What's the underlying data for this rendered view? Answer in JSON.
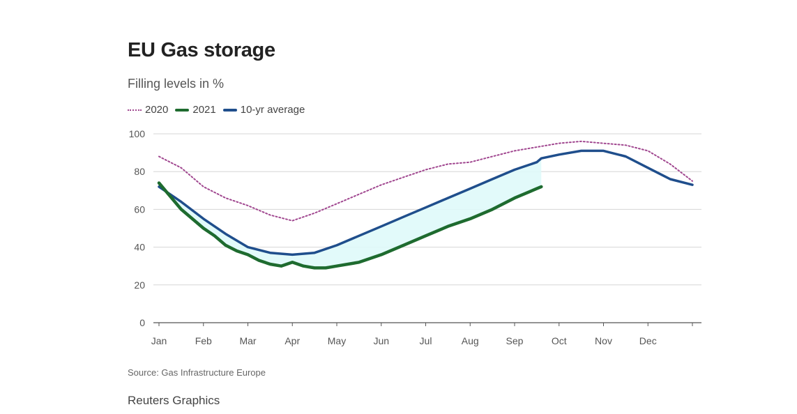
{
  "header": {
    "title": "EU Gas storage",
    "subtitle": "Filling levels in %"
  },
  "legend": [
    {
      "label": "2020",
      "color": "#a0468f",
      "style": "dotted"
    },
    {
      "label": "2021",
      "color": "#1e6b2f",
      "style": "solid"
    },
    {
      "label": "10-yr average",
      "color": "#1f4e8c",
      "style": "solid"
    }
  ],
  "footer": {
    "source": "Source: Gas Infrastructure Europe",
    "credit": "Reuters Graphics"
  },
  "chart_data": {
    "type": "line",
    "title": "EU Gas storage",
    "subtitle": "Filling levels in %",
    "xlabel": "",
    "ylabel": "",
    "xlim": [
      0,
      12
    ],
    "ylim": [
      0,
      100
    ],
    "y_ticks": [
      0,
      20,
      40,
      60,
      80,
      100
    ],
    "x_tick_labels": [
      "Jan",
      "Feb",
      "Mar",
      "Apr",
      "May",
      "Jun",
      "Jul",
      "Aug",
      "Sep",
      "Oct",
      "Nov",
      "Dec"
    ],
    "x_unit": "months since Jan 1",
    "grid": true,
    "shaded_band": {
      "between": [
        "10-yr average",
        "2021"
      ],
      "color": "#dffafa"
    },
    "series": [
      {
        "name": "2020",
        "color": "#a0468f",
        "style": "dotted",
        "x": [
          0,
          0.5,
          1,
          1.5,
          2,
          2.5,
          3,
          3.5,
          4,
          4.5,
          5,
          5.5,
          6,
          6.5,
          7,
          7.5,
          8,
          8.5,
          9,
          9.5,
          10,
          10.5,
          11,
          11.5,
          12
        ],
        "values": [
          88,
          82,
          72,
          66,
          62,
          57,
          54,
          58,
          63,
          68,
          73,
          77,
          81,
          84,
          85,
          88,
          91,
          93,
          95,
          96,
          95,
          94,
          91,
          84,
          75
        ]
      },
      {
        "name": "2021",
        "color": "#1e6b2f",
        "style": "solid",
        "x": [
          0,
          0.25,
          0.5,
          0.75,
          1,
          1.25,
          1.5,
          1.75,
          2,
          2.25,
          2.5,
          2.75,
          3,
          3.25,
          3.5,
          3.75,
          4,
          4.5,
          5,
          5.5,
          6,
          6.5,
          7,
          7.5,
          8,
          8.5,
          8.6
        ],
        "values": [
          74,
          67,
          60,
          55,
          50,
          46,
          41,
          38,
          36,
          33,
          31,
          30,
          32,
          30,
          29,
          29,
          30,
          32,
          36,
          41,
          46,
          51,
          55,
          60,
          66,
          71,
          72
        ]
      },
      {
        "name": "10-yr average",
        "color": "#1f4e8c",
        "style": "solid",
        "x": [
          0,
          0.5,
          1,
          1.5,
          2,
          2.5,
          3,
          3.5,
          4,
          4.5,
          5,
          5.5,
          6,
          6.5,
          7,
          7.5,
          8,
          8.5,
          8.6,
          9,
          9.5,
          10,
          10.5,
          11,
          11.5,
          12
        ],
        "values": [
          72,
          64,
          55,
          47,
          40,
          37,
          36,
          37,
          41,
          46,
          51,
          56,
          61,
          66,
          71,
          76,
          81,
          85,
          87,
          89,
          91,
          91,
          88,
          82,
          76,
          73
        ]
      }
    ]
  }
}
